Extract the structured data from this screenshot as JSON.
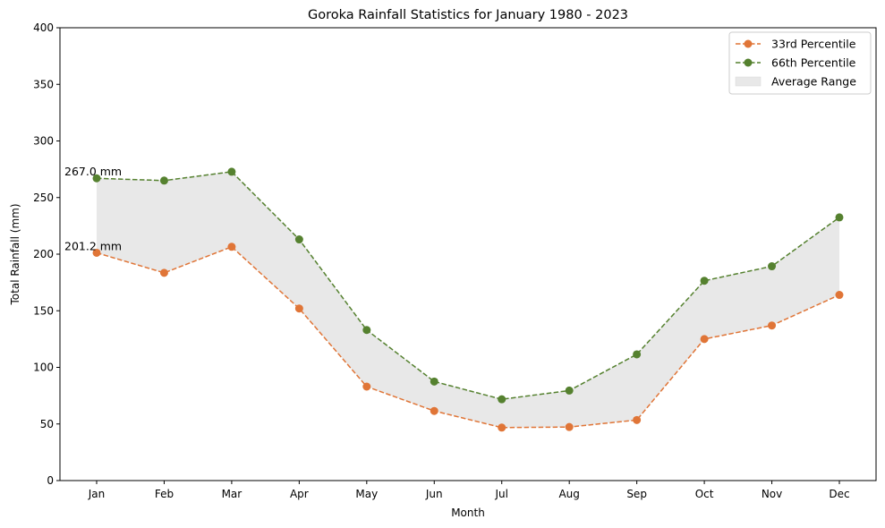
{
  "chart_data": {
    "type": "line",
    "title": "Goroka Rainfall Statistics for January 1980 - 2023",
    "xlabel": "Month",
    "ylabel": "Total Rainfall (mm)",
    "ylim": [
      0,
      400
    ],
    "yticks": [
      0,
      50,
      100,
      150,
      200,
      250,
      300,
      350,
      400
    ],
    "categories": [
      "Jan",
      "Feb",
      "Mar",
      "Apr",
      "May",
      "Jun",
      "Jul",
      "Aug",
      "Sep",
      "Oct",
      "Nov",
      "Dec"
    ],
    "series": [
      {
        "name": "33rd Percentile",
        "color": "#e07537",
        "values": [
          201.2,
          183.5,
          206.5,
          152.0,
          83.0,
          61.5,
          46.8,
          47.3,
          53.5,
          125.0,
          137.0,
          164.0
        ]
      },
      {
        "name": "66th Percentile",
        "color": "#55812f",
        "values": [
          267.0,
          265.0,
          272.8,
          213.0,
          133.0,
          87.5,
          71.8,
          79.5,
          111.5,
          176.5,
          189.3,
          232.5
        ]
      }
    ],
    "band": {
      "name": "Average Range",
      "color": "#e8e8e8"
    },
    "annotations": [
      {
        "text": "267.0 mm",
        "x": "Jan",
        "y": 267.0
      },
      {
        "text": "201.2 mm",
        "x": "Jan",
        "y": 201.2
      }
    ],
    "legend_position": "top-right",
    "grid": false
  }
}
